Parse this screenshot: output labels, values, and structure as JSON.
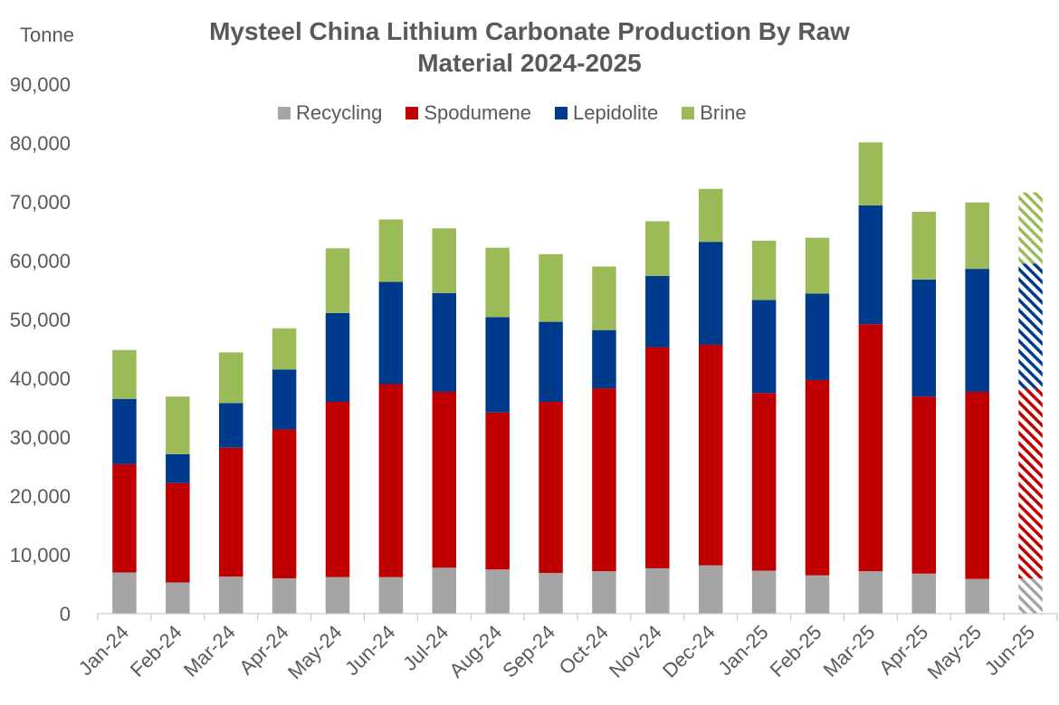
{
  "chart_data": {
    "type": "bar",
    "stacked": true,
    "title": "Mysteel China Lithium Carbonate Production By Raw Material 2024-2025",
    "title_line1": "Mysteel China Lithium Carbonate Production By Raw",
    "title_line2": "Material 2024-2025",
    "ylabel": "Tonne",
    "ylim": [
      0,
      90000
    ],
    "yticks": [
      0,
      10000,
      20000,
      30000,
      40000,
      50000,
      60000,
      70000,
      80000,
      90000
    ],
    "ytick_labels": [
      "0",
      "10,000",
      "20,000",
      "30,000",
      "40,000",
      "50,000",
      "60,000",
      "70,000",
      "80,000",
      "90,000"
    ],
    "legend_position": "top",
    "grid": false,
    "categories": [
      "Jan-24",
      "Feb-24",
      "Mar-24",
      "Apr-24",
      "May-24",
      "Jun-24",
      "Jul-24",
      "Aug-24",
      "Sep-24",
      "Oct-24",
      "Nov-24",
      "Dec-24",
      "Jan-25",
      "Feb-25",
      "Mar-25",
      "Apr-25",
      "May-25",
      "Jun-25"
    ],
    "forecast_categories": [
      "Jun-25"
    ],
    "series": [
      {
        "name": "Recycling",
        "color": "#A5A5A5",
        "values": [
          7000,
          5300,
          6300,
          6000,
          6200,
          6200,
          7800,
          7500,
          6900,
          7200,
          7700,
          8200,
          7300,
          6500,
          7200,
          6800,
          5900,
          6000
        ]
      },
      {
        "name": "Spodumene",
        "color": "#C00000",
        "values": [
          18400,
          16900,
          21900,
          25300,
          29800,
          32800,
          29900,
          26700,
          29100,
          31100,
          37600,
          37500,
          30200,
          33200,
          42000,
          30100,
          31800,
          32200
        ]
      },
      {
        "name": "Lepidolite",
        "color": "#003A8C",
        "values": [
          11100,
          4900,
          7600,
          10200,
          15100,
          17400,
          16800,
          16200,
          13600,
          9900,
          12100,
          17500,
          15800,
          14700,
          20200,
          19900,
          20900,
          21300
        ]
      },
      {
        "name": "Brine",
        "color": "#9BBB59",
        "values": [
          8300,
          9800,
          8600,
          7000,
          11000,
          10600,
          11000,
          11800,
          11500,
          10800,
          9300,
          9000,
          10100,
          9500,
          10700,
          11500,
          11300,
          12100
        ]
      }
    ]
  }
}
